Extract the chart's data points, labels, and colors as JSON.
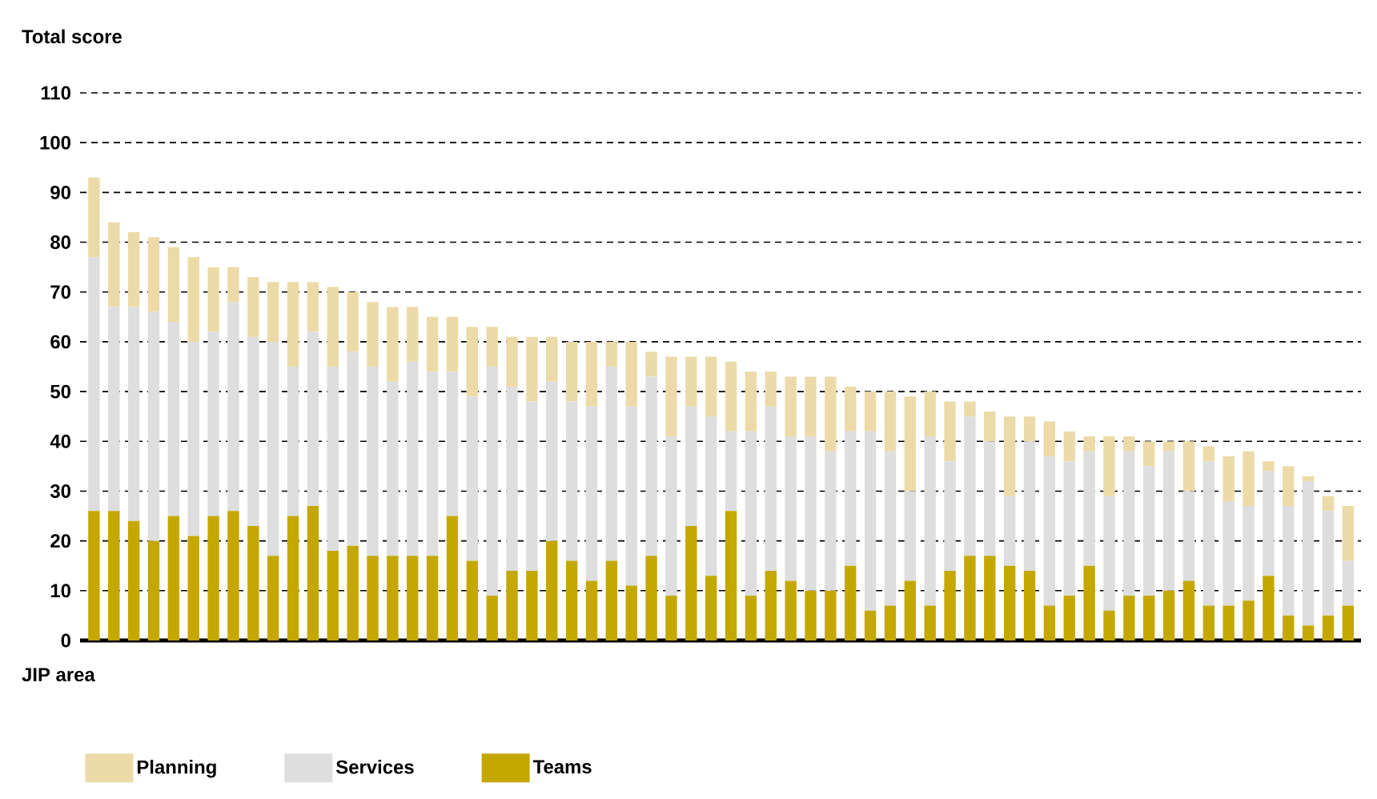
{
  "chart_data": {
    "type": "bar",
    "stacked": true,
    "ylabel": "Total score",
    "xlabel": "JIP area",
    "categories": [
      null,
      null,
      null,
      null,
      null,
      null,
      null,
      null,
      null,
      null,
      null,
      null,
      null,
      null,
      null,
      null,
      null,
      null,
      null,
      null,
      null,
      null,
      null,
      null,
      null,
      null,
      null,
      null,
      null,
      null,
      null,
      null,
      null,
      null,
      null,
      null,
      null,
      null,
      null,
      null,
      null,
      null,
      null,
      null,
      null,
      null,
      null,
      null,
      null,
      null,
      null,
      null,
      null,
      null,
      null,
      null,
      null,
      null,
      null,
      null,
      null,
      null,
      null,
      null
    ],
    "series": [
      {
        "name": "Teams",
        "color": "#c4a800",
        "values": [
          26,
          26,
          24,
          20,
          25,
          21,
          25,
          26,
          23,
          17,
          25,
          27,
          18,
          19,
          17,
          17,
          17,
          17,
          25,
          16,
          9,
          14,
          14,
          20,
          16,
          12,
          16,
          11,
          17,
          9,
          23,
          13,
          26,
          9,
          14,
          12,
          10,
          10,
          15,
          6,
          7,
          12,
          7,
          14,
          17,
          17,
          15,
          14,
          7,
          9,
          15,
          6,
          9,
          9,
          10,
          12,
          7,
          7,
          8,
          13,
          5,
          3,
          5,
          7
        ]
      },
      {
        "name": "Services",
        "color": "#dedede",
        "values": [
          51,
          41,
          43,
          46,
          39,
          39,
          37,
          42,
          38,
          43,
          30,
          35,
          37,
          39,
          38,
          35,
          39,
          37,
          29,
          33,
          46,
          37,
          34,
          32,
          32,
          35,
          39,
          36,
          36,
          32,
          24,
          32,
          16,
          33,
          33,
          29,
          31,
          28,
          27,
          36,
          31,
          18,
          34,
          22,
          28,
          23,
          14,
          26,
          30,
          27,
          23,
          23,
          29,
          26,
          28,
          18,
          29,
          21,
          19,
          21,
          22,
          29,
          21,
          9
        ]
      },
      {
        "name": "Planning",
        "color": "#ecdba8",
        "values": [
          16,
          17,
          15,
          15,
          15,
          17,
          13,
          7,
          12,
          12,
          17,
          10,
          16,
          12,
          13,
          15,
          11,
          11,
          11,
          14,
          8,
          10,
          13,
          9,
          12,
          13,
          5,
          13,
          5,
          16,
          10,
          12,
          14,
          12,
          7,
          12,
          12,
          15,
          9,
          8,
          12,
          19,
          9,
          12,
          3,
          6,
          16,
          5,
          7,
          6,
          3,
          12,
          3,
          5,
          2,
          10,
          3,
          9,
          11,
          2,
          8,
          1,
          3,
          11
        ]
      }
    ],
    "ylim": [
      0,
      110
    ],
    "yticks": [
      0,
      10,
      20,
      30,
      40,
      50,
      60,
      70,
      80,
      90,
      100,
      110
    ],
    "grid": "y",
    "legend": "bottom"
  }
}
